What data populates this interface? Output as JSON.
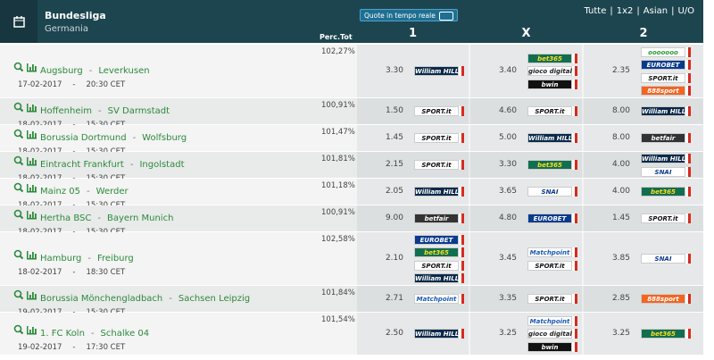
{
  "header": {
    "title": "Bundesliga",
    "subtitle": "Germania",
    "toggle": "Quote in tempo reale",
    "filters": [
      "Tutte",
      "1x2",
      "Asian",
      "U/O"
    ],
    "filter_separator": "|",
    "columns": {
      "margin": "Perc.Tot",
      "home": "1",
      "draw": "X",
      "away": "2"
    }
  },
  "separator": "-",
  "rows": [
    {
      "home": "Augsburg",
      "away": "Leverkusen",
      "date": "17-02-2017",
      "time": "20:30 CET",
      "margin": "102,27%",
      "odds": [
        {
          "odd": "3.30",
          "books": [
            {
              "name": "William HILL",
              "color": "#0b2a4a",
              "text_color": "#ffffff"
            }
          ]
        },
        {
          "odd": "3.40",
          "books": [
            {
              "name": "bet365",
              "color": "#126e51",
              "text_color": "#ffdf1b"
            },
            {
              "name": "gioco digitale",
              "color": "#ffffff",
              "text_color": "#222222"
            },
            {
              "name": "bwin",
              "color": "#111111",
              "text_color": "#ffffff"
            }
          ]
        },
        {
          "odd": "2.35",
          "books": [
            {
              "name": "ooooooo",
              "color": "#ffffff",
              "text_color": "#2b9a3a"
            },
            {
              "name": "EUROBET",
              "color": "#0a3a8c",
              "text_color": "#ffffff"
            },
            {
              "name": "SPORT.it",
              "color": "#ffffff",
              "text_color": "#111111"
            },
            {
              "name": "888sport",
              "color": "#f26522",
              "text_color": "#ffffff"
            }
          ]
        }
      ]
    },
    {
      "home": "Hoffenheim",
      "away": "SV Darmstadt",
      "date": "18-02-2017",
      "time": "15:30 CET",
      "margin": "100,91%",
      "odds": [
        {
          "odd": "1.50",
          "books": [
            {
              "name": "SPORT.it",
              "color": "#ffffff",
              "text_color": "#111111"
            }
          ]
        },
        {
          "odd": "4.60",
          "books": [
            {
              "name": "SPORT.it",
              "color": "#ffffff",
              "text_color": "#111111"
            }
          ]
        },
        {
          "odd": "8.00",
          "books": [
            {
              "name": "William HILL",
              "color": "#0b2a4a",
              "text_color": "#ffffff"
            }
          ]
        }
      ]
    },
    {
      "home": "Borussia Dortmund",
      "away": "Wolfsburg",
      "date": "18-02-2017",
      "time": "15:30 CET",
      "margin": "101,47%",
      "odds": [
        {
          "odd": "1.45",
          "books": [
            {
              "name": "SPORT.it",
              "color": "#ffffff",
              "text_color": "#111111"
            }
          ]
        },
        {
          "odd": "5.00",
          "books": [
            {
              "name": "William HILL",
              "color": "#0b2a4a",
              "text_color": "#ffffff"
            }
          ]
        },
        {
          "odd": "8.00",
          "books": [
            {
              "name": "betfair",
              "color": "#333333",
              "text_color": "#ffffff"
            }
          ]
        }
      ]
    },
    {
      "home": "Eintracht Frankfurt",
      "away": "Ingolstadt",
      "date": "18-02-2017",
      "time": "15:30 CET",
      "margin": "101,81%",
      "odds": [
        {
          "odd": "2.15",
          "books": [
            {
              "name": "SPORT.it",
              "color": "#ffffff",
              "text_color": "#111111"
            }
          ]
        },
        {
          "odd": "3.30",
          "books": [
            {
              "name": "bet365",
              "color": "#126e51",
              "text_color": "#ffdf1b"
            }
          ]
        },
        {
          "odd": "4.00",
          "books": [
            {
              "name": "William HILL",
              "color": "#0b2a4a",
              "text_color": "#ffffff"
            },
            {
              "name": "SNAI",
              "color": "#ffffff",
              "text_color": "#0a3a8c"
            }
          ]
        }
      ]
    },
    {
      "home": "Mainz 05",
      "away": "Werder",
      "date": "18-02-2017",
      "time": "15:30 CET",
      "margin": "101,18%",
      "odds": [
        {
          "odd": "2.05",
          "books": [
            {
              "name": "William HILL",
              "color": "#0b2a4a",
              "text_color": "#ffffff"
            }
          ]
        },
        {
          "odd": "3.65",
          "books": [
            {
              "name": "SNAI",
              "color": "#ffffff",
              "text_color": "#0a3a8c"
            }
          ]
        },
        {
          "odd": "4.00",
          "books": [
            {
              "name": "bet365",
              "color": "#126e51",
              "text_color": "#ffdf1b"
            }
          ]
        }
      ]
    },
    {
      "home": "Hertha BSC",
      "away": "Bayern Munich",
      "date": "18-02-2017",
      "time": "15:30 CET",
      "margin": "100,91%",
      "odds": [
        {
          "odd": "9.00",
          "books": [
            {
              "name": "betfair",
              "color": "#333333",
              "text_color": "#ffffff"
            }
          ]
        },
        {
          "odd": "4.80",
          "books": [
            {
              "name": "EUROBET",
              "color": "#0a3a8c",
              "text_color": "#ffffff"
            }
          ]
        },
        {
          "odd": "1.45",
          "books": [
            {
              "name": "SPORT.it",
              "color": "#ffffff",
              "text_color": "#111111"
            }
          ]
        }
      ]
    },
    {
      "home": "Hamburg",
      "away": "Freiburg",
      "date": "18-02-2017",
      "time": "18:30 CET",
      "margin": "102,58%",
      "odds": [
        {
          "odd": "2.10",
          "books": [
            {
              "name": "EUROBET",
              "color": "#0a3a8c",
              "text_color": "#ffffff"
            },
            {
              "name": "bet365",
              "color": "#126e51",
              "text_color": "#ffdf1b"
            },
            {
              "name": "SPORT.it",
              "color": "#ffffff",
              "text_color": "#111111"
            },
            {
              "name": "William HILL",
              "color": "#0b2a4a",
              "text_color": "#ffffff"
            }
          ]
        },
        {
          "odd": "3.45",
          "books": [
            {
              "name": "Matchpoint",
              "color": "#ffffff",
              "text_color": "#1a5ab5"
            },
            {
              "name": "SPORT.it",
              "color": "#ffffff",
              "text_color": "#111111"
            }
          ]
        },
        {
          "odd": "3.85",
          "books": [
            {
              "name": "SNAI",
              "color": "#ffffff",
              "text_color": "#0a3a8c"
            }
          ]
        }
      ]
    },
    {
      "home": "Borussia Mönchengladbach",
      "away": "Sachsen Leipzig",
      "date": "19-02-2017",
      "time": "15:30 CET",
      "margin": "101,84%",
      "odds": [
        {
          "odd": "2.71",
          "books": [
            {
              "name": "Matchpoint",
              "color": "#ffffff",
              "text_color": "#1a5ab5"
            }
          ]
        },
        {
          "odd": "3.35",
          "books": [
            {
              "name": "SPORT.it",
              "color": "#ffffff",
              "text_color": "#111111"
            }
          ]
        },
        {
          "odd": "2.85",
          "books": [
            {
              "name": "888sport",
              "color": "#f26522",
              "text_color": "#ffffff"
            }
          ]
        }
      ]
    },
    {
      "home": "1. FC Koln",
      "away": "Schalke 04",
      "date": "19-02-2017",
      "time": "17:30 CET",
      "margin": "101,54%",
      "odds": [
        {
          "odd": "2.50",
          "books": [
            {
              "name": "William HILL",
              "color": "#0b2a4a",
              "text_color": "#ffffff"
            }
          ]
        },
        {
          "odd": "3.25",
          "books": [
            {
              "name": "Matchpoint",
              "color": "#ffffff",
              "text_color": "#1a5ab5"
            },
            {
              "name": "gioco digitale",
              "color": "#ffffff",
              "text_color": "#222222"
            },
            {
              "name": "bwin",
              "color": "#111111",
              "text_color": "#ffffff"
            }
          ]
        },
        {
          "odd": "3.25",
          "books": [
            {
              "name": "bet365",
              "color": "#126e51",
              "text_color": "#ffdf1b"
            }
          ]
        }
      ]
    }
  ]
}
